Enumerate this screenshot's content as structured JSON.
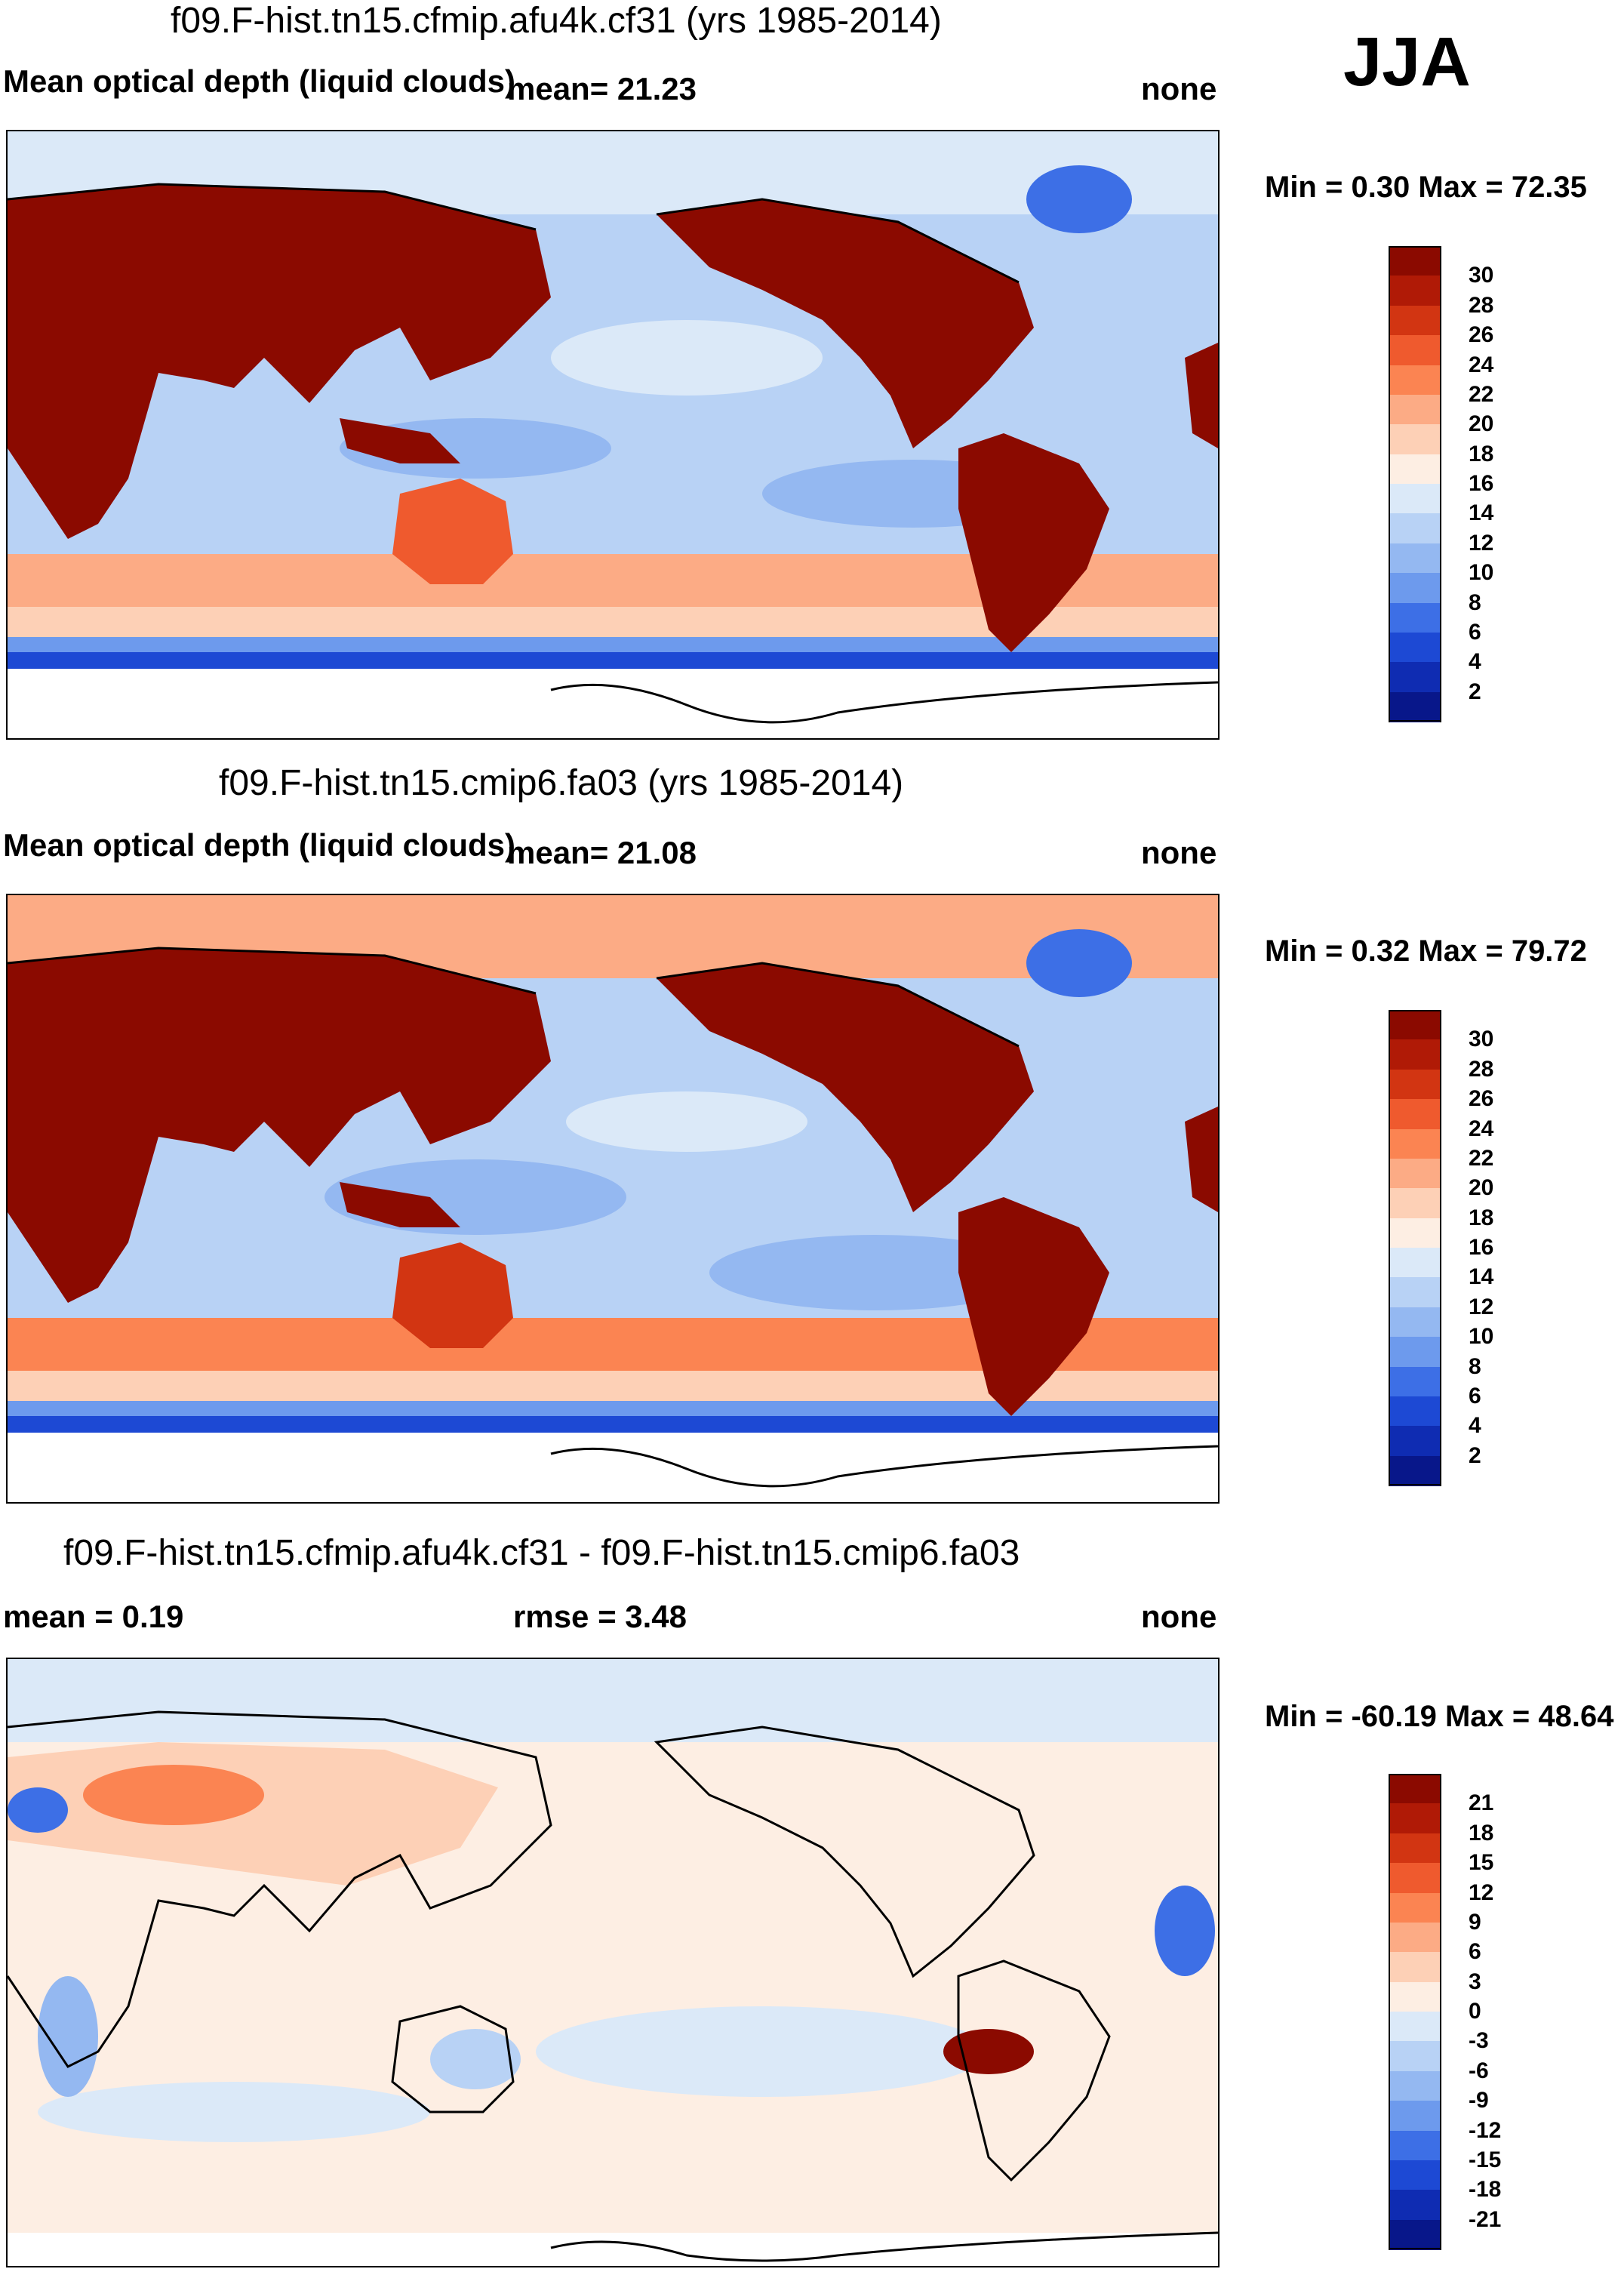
{
  "season": "JJA",
  "panels": [
    {
      "title": "f09.F-hist.tn15.cfmip.afu4k.cf31 (yrs 1985-2014)",
      "left_label": "Mean optical depth (liquid clouds)",
      "center_label": "mean=  21.23",
      "right_label": "none",
      "minmax": "Min =   0.30 Max =  72.35",
      "colorbar_labels": [
        "30",
        "28",
        "26",
        "24",
        "22",
        "20",
        "18",
        "16",
        "14",
        "12",
        "10",
        "8",
        "6",
        "4",
        "2"
      ]
    },
    {
      "title": "f09.F-hist.tn15.cmip6.fa03 (yrs 1985-2014)",
      "left_label": "Mean optical depth (liquid clouds)",
      "center_label": "mean=  21.08",
      "right_label": "none",
      "minmax": "Min =   0.32 Max =  79.72",
      "colorbar_labels": [
        "30",
        "28",
        "26",
        "24",
        "22",
        "20",
        "18",
        "16",
        "14",
        "12",
        "10",
        "8",
        "6",
        "4",
        "2"
      ]
    },
    {
      "title": "f09.F-hist.tn15.cfmip.afu4k.cf31 - f09.F-hist.tn15.cmip6.fa03",
      "left_label": "mean =   0.19",
      "center_label": "rmse =   3.48",
      "right_label": "none",
      "minmax": "Min = -60.19 Max =  48.64",
      "colorbar_labels": [
        "21",
        "18",
        "15",
        "12",
        "9",
        "6",
        "3",
        "0",
        "-3",
        "-6",
        "-9",
        "-12",
        "-15",
        "-18",
        "-21"
      ]
    }
  ],
  "colors": {
    "abs_scale": [
      "#8b0a00",
      "#b01a06",
      "#d23512",
      "#ef5a2e",
      "#fb8452",
      "#fcab85",
      "#fdd0b6",
      "#fdeee3",
      "#dbe9f8",
      "#b8d2f5",
      "#94b8f1",
      "#6d9aed",
      "#3d6fe6",
      "#1d49d4",
      "#0f2cb2",
      "#08178a"
    ],
    "diff_scale": [
      "#8b0a00",
      "#b01a06",
      "#d23512",
      "#ef5a2e",
      "#fb8452",
      "#fcab85",
      "#fdd0b6",
      "#fdeee3",
      "#dbe9f8",
      "#b8d2f5",
      "#94b8f1",
      "#6d9aed",
      "#3d6fe6",
      "#1d49d4",
      "#0f2cb2",
      "#08178a"
    ],
    "land": "#8b0a00",
    "ocean_mid": "#b8d2f5",
    "ocean_deep": "#94b8f1",
    "diff_bg": "#fdeee3"
  }
}
